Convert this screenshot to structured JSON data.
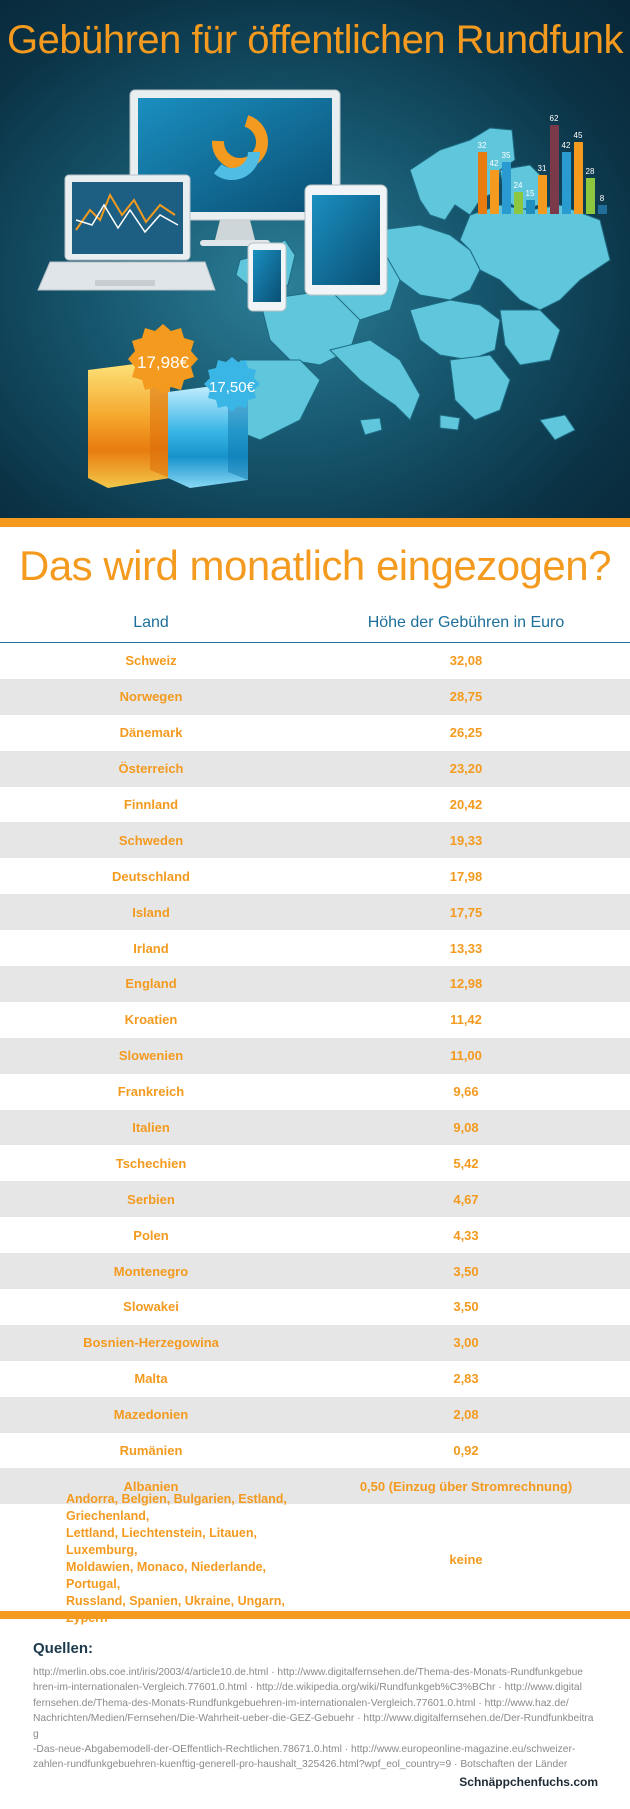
{
  "hero": {
    "title": "Gebühren für öffentlichen Rundfunk",
    "badge_orange": "17,98€",
    "badge_blue": "17,50€",
    "bar_labels": [
      "32",
      "42",
      "35",
      "24",
      "15",
      "31",
      "62",
      "42",
      "45",
      "28",
      "8"
    ]
  },
  "section": {
    "title": "Das wird monatlich eingezogen?"
  },
  "table": {
    "headers": {
      "country": "Land",
      "fee": "Höhe der Gebühren in Euro"
    },
    "rows": [
      {
        "country": "Schweiz",
        "fee": "32,08"
      },
      {
        "country": "Norwegen",
        "fee": "28,75"
      },
      {
        "country": "Dänemark",
        "fee": "26,25"
      },
      {
        "country": "Österreich",
        "fee": "23,20"
      },
      {
        "country": "Finnland",
        "fee": "20,42"
      },
      {
        "country": "Schweden",
        "fee": "19,33"
      },
      {
        "country": "Deutschland",
        "fee": "17,98"
      },
      {
        "country": "Island",
        "fee": "17,75"
      },
      {
        "country": "Irland",
        "fee": "13,33"
      },
      {
        "country": "England",
        "fee": "12,98"
      },
      {
        "country": "Kroatien",
        "fee": "11,42"
      },
      {
        "country": "Slowenien",
        "fee": "11,00"
      },
      {
        "country": "Frankreich",
        "fee": "9,66"
      },
      {
        "country": "Italien",
        "fee": "9,08"
      },
      {
        "country": "Tschechien",
        "fee": "5,42"
      },
      {
        "country": "Serbien",
        "fee": "4,67"
      },
      {
        "country": "Polen",
        "fee": "4,33"
      },
      {
        "country": "Montenegro",
        "fee": "3,50"
      },
      {
        "country": "Slowakei",
        "fee": "3,50"
      },
      {
        "country": "Bosnien-Herzegowina",
        "fee": "3,00"
      },
      {
        "country": "Malta",
        "fee": "2,83"
      },
      {
        "country": "Mazedonien",
        "fee": "2,08"
      },
      {
        "country": "Rumänien",
        "fee": "0,92"
      },
      {
        "country": "Albanien",
        "fee": "0,50 (Einzug über Stromrechnung)"
      }
    ],
    "last_row": {
      "countries_lines": [
        "Andorra, Belgien, Bulgarien, Estland, Griechenland,",
        "Lettland, Liechtenstein, Litauen, Luxemburg,",
        "Moldawien, Monaco, Niederlande, Portugal,",
        "Russland, Spanien, Ukraine, Ungarn, Zypern"
      ],
      "fee": "keine"
    }
  },
  "sources": {
    "heading": "Quellen:",
    "lines": [
      "http://merlin.obs.coe.int/iris/2003/4/article10.de.html · http://www.digitalfernsehen.de/Thema-des-Monats-Rundfunkgebue",
      "hren-im-internationalen-Vergleich.77601.0.html · http://de.wikipedia.org/wiki/Rundfunkgeb%C3%BChr · http://www.digital",
      "fernsehen.de/Thema-des-Monats-Rundfunkgebuehren-im-internationalen-Vergleich.77601.0.html · http://www.haz.de/",
      "Nachrichten/Medien/Fernsehen/Die-Wahrheit-ueber-die-GEZ-Gebuehr · http://www.digitalfernsehen.de/Der-Rundfunkbeitrag",
      "-Das-neue-Abgabemodell-der-OEffentlich-Rechtlichen.78671.0.html · http://www.europeonline-magazine.eu/schweizer-",
      "zahlen-rundfunkgebuehren-kuenftig-generell-pro-haushalt_325426.html?wpf_eol_country=9 · Botschaften der Länder"
    ]
  },
  "brand": "Schnäppchenfuchs.com",
  "colors": {
    "accent": "#f39a1f",
    "header_blue": "#1d6f9a",
    "hero_bg": "#0b3346"
  }
}
